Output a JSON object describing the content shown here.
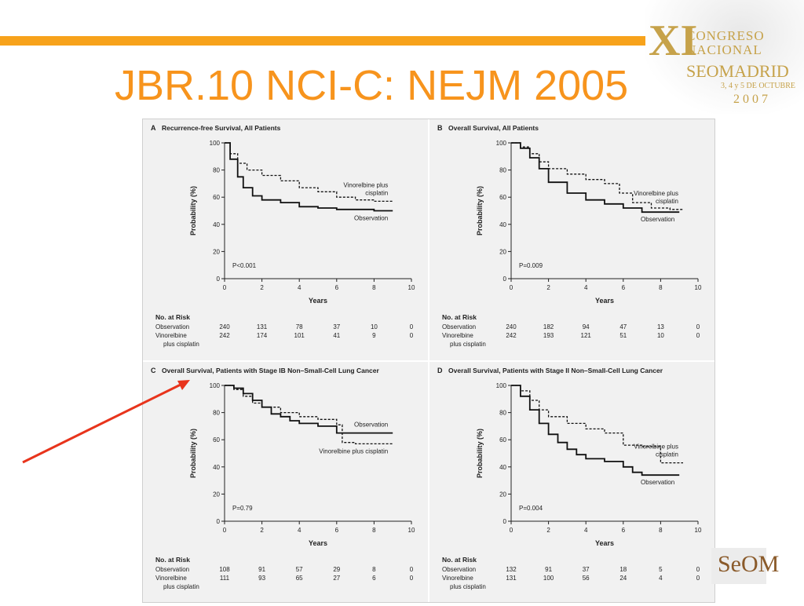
{
  "slide": {
    "title": "JBR.10 NCI-C: NEJM 2005",
    "accent_color": "#f7941d",
    "bar_color": "#f7a21b",
    "arrow_color": "#e8341c"
  },
  "logo": {
    "numeral": "XI",
    "line1": "CONGRESO",
    "line2": "NACIONAL",
    "line3": "SEOMADRID",
    "line4": "3, 4 y 5 DE OCTUBRE",
    "line5": "2007",
    "color": "#c6a24a"
  },
  "seom_logo": {
    "text": "SeOM",
    "icon": "seom-logo-icon"
  },
  "chart_data": [
    {
      "type": "line",
      "panel": "A",
      "title": "Recurrence-free Survival, All Patients",
      "xlabel": "Years",
      "ylabel": "Probability (%)",
      "xlim": [
        0,
        10
      ],
      "ylim": [
        0,
        100
      ],
      "xticks": [
        0,
        2,
        4,
        6,
        8,
        10
      ],
      "yticks": [
        0,
        20,
        40,
        60,
        80,
        100
      ],
      "pvalue": "P<0.001",
      "series": [
        {
          "name": "Vinorelbine plus cisplatin",
          "label_lines": [
            "Vinorelbine plus",
            "cisplatin"
          ],
          "style": "dashed",
          "x": [
            0,
            0.3,
            0.7,
            1.2,
            2,
            3,
            4,
            5,
            6,
            7,
            8,
            9
          ],
          "y": [
            100,
            92,
            85,
            80,
            76,
            72,
            67,
            64,
            60,
            58,
            57,
            57
          ]
        },
        {
          "name": "Observation",
          "label_lines": [
            "Observation"
          ],
          "style": "solid",
          "x": [
            0,
            0.3,
            0.7,
            1,
            1.5,
            2,
            3,
            4,
            5,
            6,
            7,
            8,
            9
          ],
          "y": [
            100,
            88,
            75,
            67,
            61,
            58,
            56,
            53,
            52,
            51,
            51,
            50,
            50
          ]
        }
      ],
      "risk_table": {
        "header": "No. at Risk",
        "rows": [
          {
            "label": [
              "Observation"
            ],
            "values": [
              "240",
              "131",
              "78",
              "37",
              "10",
              "0"
            ]
          },
          {
            "label": [
              "Vinorelbine",
              "plus cisplatin"
            ],
            "values": [
              "242",
              "174",
              "101",
              "41",
              "9",
              "0"
            ]
          }
        ]
      }
    },
    {
      "type": "line",
      "panel": "B",
      "title": "Overall Survival, All Patients",
      "xlabel": "Years",
      "ylabel": "Probability (%)",
      "xlim": [
        0,
        10
      ],
      "ylim": [
        0,
        100
      ],
      "xticks": [
        0,
        2,
        4,
        6,
        8,
        10
      ],
      "yticks": [
        0,
        20,
        40,
        60,
        80,
        100
      ],
      "pvalue": "P=0.009",
      "series": [
        {
          "name": "Vinorelbine plus cisplatin",
          "label_lines": [
            "Vinorelbine plus",
            "cisplatin"
          ],
          "style": "dashed",
          "x": [
            0,
            0.5,
            1,
            1.5,
            2,
            3,
            4,
            5,
            5.8,
            6.5,
            7.5,
            8.5,
            9.2
          ],
          "y": [
            100,
            97,
            92,
            86,
            81,
            77,
            73,
            70,
            63,
            56,
            52,
            51,
            51
          ]
        },
        {
          "name": "Observation",
          "label_lines": [
            "Observation"
          ],
          "style": "solid",
          "x": [
            0,
            0.5,
            1,
            1.5,
            2,
            3,
            4,
            5,
            6,
            7,
            8,
            9
          ],
          "y": [
            100,
            96,
            89,
            81,
            71,
            63,
            58,
            55,
            52,
            49,
            49,
            49
          ]
        }
      ],
      "risk_table": {
        "header": "No. at Risk",
        "rows": [
          {
            "label": [
              "Observation"
            ],
            "values": [
              "240",
              "182",
              "94",
              "47",
              "13",
              "0"
            ]
          },
          {
            "label": [
              "Vinorelbine",
              "plus cisplatin"
            ],
            "values": [
              "242",
              "193",
              "121",
              "51",
              "10",
              "0"
            ]
          }
        ]
      }
    },
    {
      "type": "line",
      "panel": "C",
      "title": "Overall Survival, Patients with Stage IB Non–Small-Cell Lung Cancer",
      "xlabel": "Years",
      "ylabel": "Probability (%)",
      "xlim": [
        0,
        10
      ],
      "ylim": [
        0,
        100
      ],
      "xticks": [
        0,
        2,
        4,
        6,
        8,
        10
      ],
      "yticks": [
        0,
        20,
        40,
        60,
        80,
        100
      ],
      "pvalue": "P=0.79",
      "series": [
        {
          "name": "Observation",
          "label_lines": [
            "Observation"
          ],
          "style": "solid",
          "x": [
            0,
            0.5,
            1,
            1.5,
            2,
            2.5,
            3,
            3.5,
            4,
            5,
            6,
            7,
            8,
            9
          ],
          "y": [
            100,
            98,
            94,
            89,
            84,
            79,
            77,
            74,
            72,
            70,
            65,
            65,
            65,
            65
          ]
        },
        {
          "name": "Vinorelbine plus cisplatin",
          "label_lines": [
            "Vinorelbine plus cisplatin"
          ],
          "style": "dashed",
          "x": [
            0,
            0.5,
            1,
            1.5,
            2,
            3,
            4,
            5,
            6,
            6.3,
            7,
            8,
            9
          ],
          "y": [
            100,
            97,
            92,
            87,
            84,
            80,
            77,
            75,
            71,
            58,
            57,
            57,
            57
          ]
        }
      ],
      "risk_table": {
        "header": "No. at Risk",
        "rows": [
          {
            "label": [
              "Observation"
            ],
            "values": [
              "108",
              "91",
              "57",
              "29",
              "8",
              "0"
            ]
          },
          {
            "label": [
              "Vinorelbine",
              "plus cisplatin"
            ],
            "values": [
              "111",
              "93",
              "65",
              "27",
              "6",
              "0"
            ]
          }
        ]
      }
    },
    {
      "type": "line",
      "panel": "D",
      "title": "Overall Survival, Patients with Stage II Non–Small-Cell Lung Cancer",
      "xlabel": "Years",
      "ylabel": "Probability (%)",
      "xlim": [
        0,
        10
      ],
      "ylim": [
        0,
        100
      ],
      "xticks": [
        0,
        2,
        4,
        6,
        8,
        10
      ],
      "yticks": [
        0,
        20,
        40,
        60,
        80,
        100
      ],
      "pvalue": "P=0.004",
      "series": [
        {
          "name": "Vinorelbine plus cisplatin",
          "label_lines": [
            "Vinorelbine plus",
            "cisplatin"
          ],
          "style": "dashed",
          "x": [
            0,
            0.5,
            1,
            1.5,
            2,
            3,
            4,
            5,
            6,
            7,
            7.9,
            8,
            9.2
          ],
          "y": [
            100,
            96,
            89,
            82,
            77,
            72,
            68,
            65,
            56,
            55,
            55,
            43,
            43
          ]
        },
        {
          "name": "Observation",
          "label_lines": [
            "Observation"
          ],
          "style": "solid",
          "x": [
            0,
            0.5,
            1,
            1.5,
            2,
            2.5,
            3,
            3.5,
            4,
            5,
            6,
            6.5,
            7,
            8,
            9
          ],
          "y": [
            100,
            92,
            82,
            72,
            64,
            58,
            53,
            49,
            46,
            44,
            40,
            36,
            34,
            34,
            34
          ]
        }
      ],
      "risk_table": {
        "header": "No. at Risk",
        "rows": [
          {
            "label": [
              "Observation"
            ],
            "values": [
              "132",
              "91",
              "37",
              "18",
              "5",
              "0"
            ]
          },
          {
            "label": [
              "Vinorelbine",
              "plus cisplatin"
            ],
            "values": [
              "131",
              "100",
              "56",
              "24",
              "4",
              "0"
            ]
          }
        ]
      }
    }
  ]
}
